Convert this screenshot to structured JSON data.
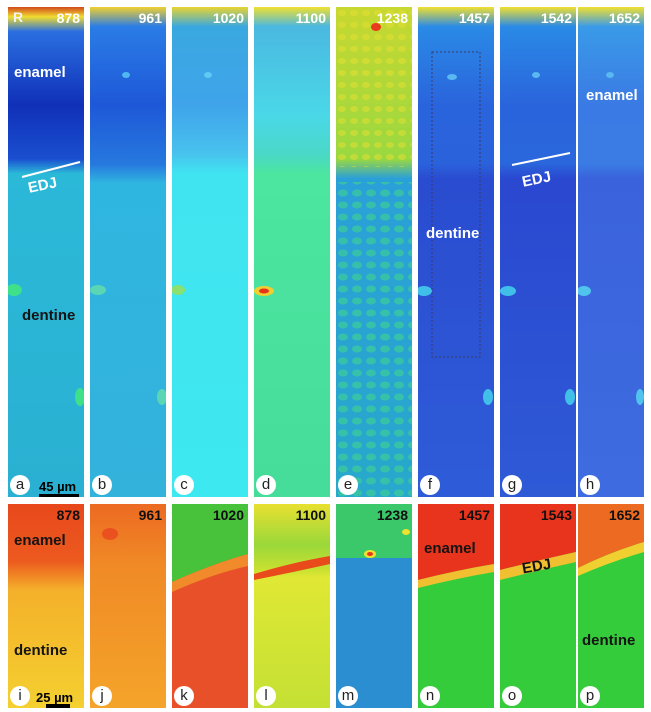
{
  "figure": {
    "corner_mark": "R",
    "top_row": [
      {
        "letter": "a",
        "wavenumber": "878"
      },
      {
        "letter": "b",
        "wavenumber": "961"
      },
      {
        "letter": "c",
        "wavenumber": "1020"
      },
      {
        "letter": "d",
        "wavenumber": "1100"
      },
      {
        "letter": "e",
        "wavenumber": "1238"
      },
      {
        "letter": "f",
        "wavenumber": "1457"
      },
      {
        "letter": "g",
        "wavenumber": "1542"
      },
      {
        "letter": "h",
        "wavenumber": "1652"
      }
    ],
    "bottom_row": [
      {
        "letter": "i",
        "wavenumber": "878"
      },
      {
        "letter": "j",
        "wavenumber": "961"
      },
      {
        "letter": "k",
        "wavenumber": "1020"
      },
      {
        "letter": "l",
        "wavenumber": "1100"
      },
      {
        "letter": "m",
        "wavenumber": "1238"
      },
      {
        "letter": "n",
        "wavenumber": "1457"
      },
      {
        "letter": "o",
        "wavenumber": "1543"
      },
      {
        "letter": "p",
        "wavenumber": "1652"
      }
    ],
    "labels": {
      "enamel": "enamel",
      "dentine": "dentine",
      "edj": "EDJ",
      "scale_top": "45 µm",
      "scale_bottom": "25 µm"
    },
    "colors": {
      "top_enamel": "#1a3fd0",
      "top_dentine": "#2bb7d8",
      "cyan": "#38e8ee",
      "green": "#33c93a",
      "yellow": "#f5e22a",
      "orange": "#f7902a",
      "red": "#e8341c"
    }
  }
}
